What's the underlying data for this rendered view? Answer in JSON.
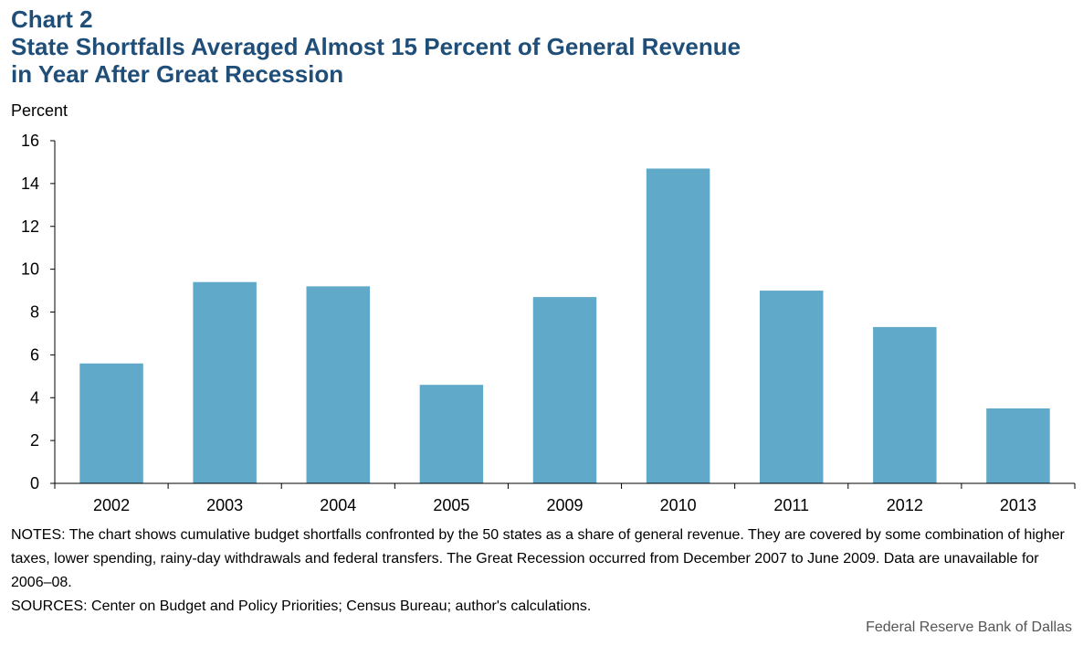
{
  "header": {
    "chart_label": "Chart 2",
    "title_line1": "State Shortfalls Averaged Almost 15 Percent of General Revenue",
    "title_line2": "in Year After Great Recession"
  },
  "chart_data": {
    "type": "bar",
    "ylabel": "Percent",
    "categories": [
      "2002",
      "2003",
      "2004",
      "2005",
      "2009",
      "2010",
      "2011",
      "2012",
      "2013"
    ],
    "values": [
      5.6,
      9.4,
      9.2,
      4.6,
      8.7,
      14.7,
      9.0,
      7.3,
      3.5
    ],
    "ylim": [
      0,
      16
    ],
    "yticks": [
      0,
      2,
      4,
      6,
      8,
      10,
      12,
      14,
      16
    ],
    "bar_color": "#61a9c9",
    "grid": false,
    "legend": "none"
  },
  "footer": {
    "notes": "NOTES: The chart shows cumulative budget shortfalls confronted by the 50 states as a share of general revenue. They are covered by some combination of higher taxes, lower spending, rainy-day withdrawals and federal transfers. The Great Recession occurred from December 2007 to June 2009. Data are unavailable for 2006–08.",
    "sources": "SOURCES: Center on Budget and Policy Priorities; Census Bureau; author's calculations.",
    "credit": "Federal Reserve Bank of Dallas"
  }
}
